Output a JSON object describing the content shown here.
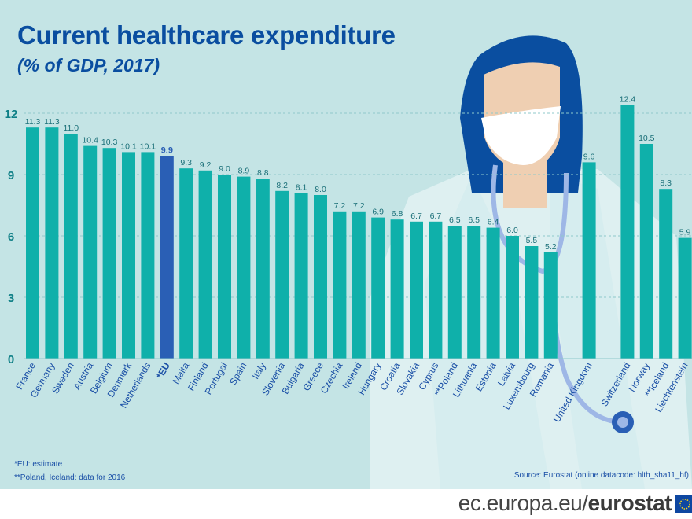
{
  "header": {
    "title": "Current healthcare expenditure",
    "subtitle": "(% of GDP, 2017)"
  },
  "footnotes": {
    "eu": "*EU: estimate",
    "poland_iceland": "**Poland, Iceland: data for 2016"
  },
  "source": "Source:  Eurostat (online datacode: hlth_sha11_hf)",
  "footer": {
    "url_prefix": "ec.europa.eu/",
    "url_brand": "eurostat"
  },
  "colors": {
    "bar": "#0fb0aa",
    "bar_highlight": "#2a5fb5",
    "background": "#c4e4e5",
    "title": "#0a4ea0"
  },
  "chart_data": {
    "type": "bar",
    "title": "Current healthcare expenditure",
    "subtitle": "(% of GDP, 2017)",
    "xlabel": "",
    "ylabel": "% of GDP",
    "ylim": [
      0,
      12
    ],
    "yticks": [
      0,
      3,
      6,
      9,
      12
    ],
    "grid": true,
    "highlight": "*EU",
    "categories": [
      "France",
      "Germany",
      "Sweden",
      "Austria",
      "Belgium",
      "Denmark",
      "Netherlands",
      "*EU",
      "Malta",
      "Finland",
      "Portugal",
      "Spain",
      "Italy",
      "Slovenia",
      "Bulgaria",
      "Greece",
      "Czechia",
      "Ireland",
      "Hungary",
      "Croatia",
      "Slovakia",
      "Cyprus",
      "**Poland",
      "Lithuania",
      "Estonia",
      "Latvia",
      "Luxembourg",
      "Romania",
      "United Kingdom",
      "Switzerland",
      "Norway",
      "**Iceland",
      "Liechtenstein"
    ],
    "values": [
      11.3,
      11.3,
      11.0,
      10.4,
      10.3,
      10.1,
      10.1,
      9.9,
      9.3,
      9.2,
      9.0,
      8.9,
      8.8,
      8.2,
      8.1,
      8.0,
      7.2,
      7.2,
      6.9,
      6.8,
      6.7,
      6.7,
      6.5,
      6.5,
      6.4,
      6.0,
      5.5,
      5.2,
      9.6,
      12.4,
      10.5,
      8.3,
      5.9
    ],
    "value_labels": [
      "11.3",
      "11.3",
      "11.0",
      "10.4",
      "10.3",
      "10.1",
      "10.1",
      "9.9",
      "9.3",
      "9.2",
      "9.0",
      "8.9",
      "8.8",
      "8.2",
      "8.1",
      "8.0",
      "7.2",
      "7.2",
      "6.9",
      "6.8",
      "6.7",
      "6.7",
      "6.5",
      "6.5",
      "6.4",
      "6.0",
      "5.5",
      "5.2",
      "9.6",
      "12.4",
      "10.5",
      "8.3",
      "5.9"
    ],
    "group_gaps_after": [
      "Romania",
      "United Kingdom"
    ]
  }
}
